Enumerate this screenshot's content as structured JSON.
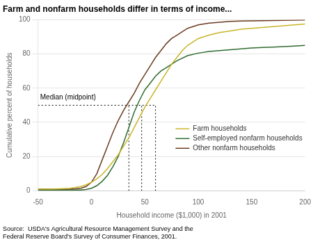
{
  "chart_data": {
    "type": "line",
    "title": "Farm and nonfarm households differ in terms of income...",
    "y_label": "Cumulative percent of households",
    "x_label": "Household income ($1,000) in 2001",
    "source": "Source:  USDA's Agricultural Resource Management Survey and the\nFederal Reserve Board's Survey of Consumer Finances, 2001.",
    "xlim": [
      -50,
      200
    ],
    "ylim": [
      0,
      100
    ],
    "xticks": [
      -50,
      0,
      50,
      100,
      150,
      200
    ],
    "yticks": [
      0,
      20,
      40,
      60,
      80,
      100
    ],
    "grid": true,
    "legend": "lower right",
    "series": [
      {
        "name": "Farm households",
        "color": "#c8b428",
        "x": [
          -50,
          -40,
          -30,
          -20,
          -15,
          -10,
          -5,
          0,
          5,
          10,
          15,
          20,
          25,
          30,
          35,
          40,
          45,
          50,
          55,
          60,
          65,
          70,
          75,
          80,
          85,
          90,
          100,
          110,
          120,
          130,
          140,
          150,
          160,
          170,
          180,
          190,
          200
        ],
        "values": [
          1,
          1,
          1.2,
          1.5,
          2,
          2.5,
          3.5,
          5,
          7,
          9.5,
          13,
          17,
          21,
          26,
          31,
          37,
          43,
          49,
          54,
          59,
          64,
          69,
          74,
          78,
          82,
          85,
          89,
          91,
          92.5,
          93.5,
          94.5,
          95,
          95.5,
          96,
          96.5,
          97,
          97.5
        ]
      },
      {
        "name": "Self-employed nonfarm households",
        "color": "#2e6b2e",
        "x": [
          -50,
          -40,
          -30,
          -20,
          -15,
          -10,
          -5,
          0,
          5,
          10,
          15,
          20,
          25,
          30,
          35,
          40,
          45,
          50,
          55,
          60,
          65,
          70,
          75,
          80,
          90,
          100,
          110,
          120,
          130,
          140,
          150,
          160,
          170,
          180,
          190,
          200
        ],
        "values": [
          0.5,
          0.5,
          0.5,
          0.5,
          0.5,
          0.5,
          0.8,
          1.5,
          3,
          5.5,
          9,
          14,
          20,
          28,
          37,
          46,
          53,
          59,
          63,
          67,
          70,
          72,
          74,
          76,
          79,
          80.5,
          81.5,
          82,
          82.5,
          83,
          83.5,
          83.8,
          84,
          84.3,
          84.6,
          85
        ]
      },
      {
        "name": "Other nonfarm households",
        "color": "#6b3a1f",
        "x": [
          -50,
          -40,
          -30,
          -20,
          -15,
          -10,
          -5,
          0,
          5,
          10,
          15,
          20,
          25,
          30,
          35,
          40,
          45,
          50,
          55,
          60,
          65,
          70,
          75,
          80,
          85,
          90,
          100,
          110,
          120,
          130,
          140,
          150,
          160,
          170,
          180,
          190,
          200
        ],
        "values": [
          1,
          1,
          1,
          1,
          1.2,
          1.5,
          2.5,
          5,
          10,
          18,
          26,
          34,
          41,
          47,
          52,
          57,
          63,
          68,
          73,
          78,
          82,
          86,
          89,
          91,
          93,
          95,
          97,
          98,
          98.5,
          99,
          99.2,
          99.4,
          99.5,
          99.6,
          99.7,
          99.8,
          99.9
        ]
      }
    ],
    "reference_lines": [
      {
        "x": [
          -50,
          60
        ],
        "y": [
          50,
          50
        ],
        "color": "#000000",
        "line_style": "dotted"
      },
      {
        "x": [
          35,
          35
        ],
        "y": [
          0,
          50
        ],
        "color": "#000000",
        "line_style": "dotted"
      },
      {
        "x": [
          47,
          47
        ],
        "y": [
          0,
          50
        ],
        "color": "#000000",
        "line_style": "dotted"
      },
      {
        "x": [
          60,
          60
        ],
        "y": [
          0,
          50
        ],
        "color": "#000000",
        "line_style": "dotted"
      }
    ],
    "annotations": [
      {
        "text": "Median (midpoint)",
        "x": -48,
        "y": 52.5
      }
    ]
  }
}
